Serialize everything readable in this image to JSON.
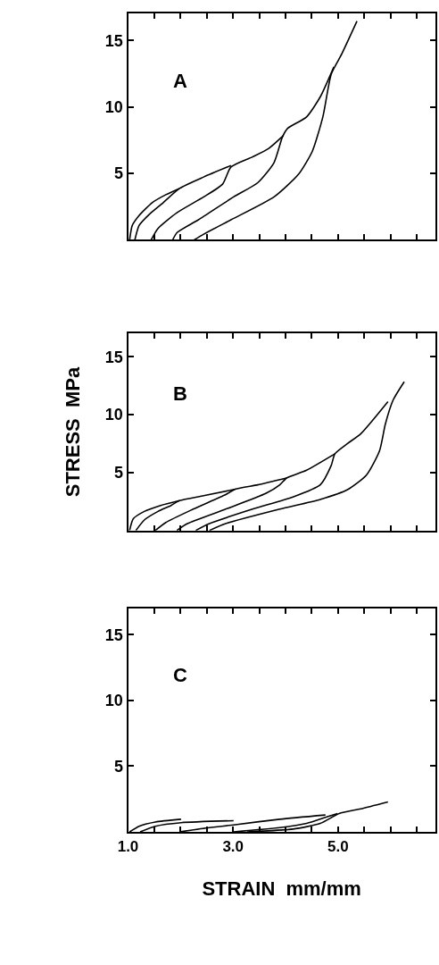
{
  "chart_data": [
    {
      "type": "line",
      "annotations": [
        "A"
      ],
      "xlim": [
        1.0,
        6.85
      ],
      "ylim": [
        0,
        17
      ],
      "tick_labels": "y",
      "marker": "none",
      "line_style": "solid",
      "xticks": [
        {
          "value": 1.0,
          "label": null
        },
        {
          "value": 1.5,
          "label": null
        },
        {
          "value": 2.0,
          "label": null
        },
        {
          "value": 2.5,
          "label": null
        },
        {
          "value": 3.0,
          "label": null
        },
        {
          "value": 3.5,
          "label": null
        },
        {
          "value": 4.0,
          "label": null
        },
        {
          "value": 4.5,
          "label": null
        },
        {
          "value": 5.0,
          "label": null
        },
        {
          "value": 5.5,
          "label": null
        },
        {
          "value": 6.0,
          "label": null
        },
        {
          "value": 6.5,
          "label": null
        }
      ],
      "yticks": [
        5,
        10,
        15
      ],
      "series": [
        {
          "color": "#000000",
          "x": [
            1.03,
            1.08,
            1.21,
            1.46,
            1.72,
            1.98
          ],
          "values": [
            0,
            1.08,
            1.83,
            2.8,
            3.4,
            3.87
          ]
        },
        {
          "color": "#000000",
          "x": [
            1.13,
            1.21,
            1.41,
            1.67,
            1.98,
            2.44,
            2.96
          ],
          "values": [
            0,
            1.08,
            1.94,
            2.8,
            3.87,
            4.73,
            5.59
          ]
        },
        {
          "color": "#000000",
          "x": [
            1.44,
            1.57,
            1.93,
            2.44,
            2.8,
            2.96,
            3.37,
            3.68,
            3.96
          ],
          "values": [
            0,
            0.86,
            2.04,
            3.23,
            4.19,
            5.48,
            6.24,
            6.88,
            7.85
          ]
        },
        {
          "color": "#000000",
          "x": [
            1.85,
            1.93,
            2.34,
            3.01,
            3.47,
            3.78,
            3.94,
            4.04,
            4.4,
            4.66,
            4.92
          ],
          "values": [
            0,
            0.54,
            1.51,
            3.23,
            4.3,
            5.81,
            7.74,
            8.39,
            9.25,
            10.75,
            13.01
          ]
        },
        {
          "color": "#000000",
          "x": [
            2.26,
            2.44,
            2.96,
            3.78,
            4.25,
            4.51,
            4.71,
            4.87,
            5.07,
            5.36
          ],
          "values": [
            0,
            0.43,
            1.51,
            3.23,
            4.95,
            6.67,
            9.25,
            12.47,
            13.98,
            16.45
          ]
        }
      ]
    },
    {
      "type": "line",
      "annotations": [
        "B"
      ],
      "ylabel": "STRESS  MPa",
      "xlim": [
        1.0,
        6.85
      ],
      "ylim": [
        0,
        17
      ],
      "tick_labels": "y",
      "marker": "none",
      "line_style": "solid",
      "xticks": [
        {
          "value": 1.0,
          "label": null
        },
        {
          "value": 1.5,
          "label": null
        },
        {
          "value": 2.0,
          "label": null
        },
        {
          "value": 2.5,
          "label": null
        },
        {
          "value": 3.0,
          "label": null
        },
        {
          "value": 3.5,
          "label": null
        },
        {
          "value": 4.0,
          "label": null
        },
        {
          "value": 4.5,
          "label": null
        },
        {
          "value": 5.0,
          "label": null
        },
        {
          "value": 5.5,
          "label": null
        },
        {
          "value": 6.0,
          "label": null
        },
        {
          "value": 6.5,
          "label": null
        }
      ],
      "yticks": [
        5,
        10,
        15
      ],
      "series": [
        {
          "color": "#000000",
          "x": [
            1.03,
            1.1,
            1.31,
            1.62,
            1.98
          ],
          "values": [
            0,
            1.01,
            1.64,
            2.16,
            2.58
          ]
        },
        {
          "color": "#000000",
          "x": [
            1.15,
            1.31,
            1.57,
            1.82,
            1.98,
            2.44,
            3.04
          ],
          "values": [
            0,
            0.9,
            1.64,
            2.16,
            2.58,
            3.0,
            3.56
          ]
        },
        {
          "color": "#000000",
          "x": [
            1.52,
            1.72,
            2.24,
            2.86,
            3.04,
            3.47,
            4.02
          ],
          "values": [
            0,
            0.69,
            1.84,
            3.1,
            3.56,
            3.94,
            4.53
          ]
        },
        {
          "color": "#000000",
          "x": [
            1.93,
            2.13,
            2.86,
            3.63,
            3.89,
            4.02,
            4.4,
            4.94
          ],
          "values": [
            0,
            0.59,
            1.84,
            3.21,
            3.94,
            4.53,
            5.2,
            6.62
          ]
        },
        {
          "color": "#000000",
          "x": [
            2.29,
            2.55,
            3.37,
            4.14,
            4.66,
            4.87,
            4.94,
            5.18,
            5.43,
            5.95
          ],
          "values": [
            0,
            0.59,
            1.84,
            2.89,
            3.94,
            5.62,
            6.62,
            7.51,
            8.34,
            11.13
          ]
        },
        {
          "color": "#000000",
          "x": [
            2.55,
            2.86,
            3.89,
            4.66,
            5.18,
            5.54,
            5.79,
            5.9,
            6.05,
            6.26
          ],
          "values": [
            0,
            0.59,
            1.84,
            2.68,
            3.52,
            4.78,
            6.88,
            9.18,
            11.28,
            12.85
          ]
        }
      ]
    },
    {
      "type": "line",
      "annotations": [
        "C"
      ],
      "xlabel": "STRAIN  mm/mm",
      "xlim": [
        1.0,
        6.85
      ],
      "ylim": [
        0,
        17
      ],
      "marker": "none",
      "line_style": "solid",
      "xticks": [
        {
          "value": 1.0,
          "label": "1.0"
        },
        {
          "value": 1.5,
          "label": null
        },
        {
          "value": 2.0,
          "label": null
        },
        {
          "value": 2.5,
          "label": null
        },
        {
          "value": 3.0,
          "label": "3.0"
        },
        {
          "value": 3.5,
          "label": null
        },
        {
          "value": 4.0,
          "label": null
        },
        {
          "value": 4.5,
          "label": null
        },
        {
          "value": 5.0,
          "label": "5.0"
        },
        {
          "value": 5.5,
          "label": null
        },
        {
          "value": 6.0,
          "label": null
        },
        {
          "value": 6.5,
          "label": null
        }
      ],
      "yticks": [
        5,
        10,
        15
      ],
      "series": [
        {
          "color": "#000000",
          "x": [
            1.03,
            1.21,
            1.52,
            2.01
          ],
          "values": [
            0,
            0.43,
            0.75,
            0.96
          ]
        },
        {
          "color": "#000000",
          "x": [
            1.23,
            1.52,
            2.01,
            3.01
          ],
          "values": [
            0,
            0.43,
            0.7,
            0.85
          ]
        },
        {
          "color": "#000000",
          "x": [
            1.98,
            2.55,
            3.01,
            3.89,
            4.76
          ],
          "values": [
            0,
            0.32,
            0.53,
            0.96,
            1.28
          ]
        },
        {
          "color": "#000000",
          "x": [
            3.01,
            3.89,
            4.4,
            4.81,
            4.99
          ],
          "values": [
            0,
            0.32,
            0.64,
            1.17,
            1.39
          ]
        },
        {
          "color": "#000000",
          "x": [
            3.27,
            4.14,
            4.66,
            5.02,
            5.43,
            5.95
          ],
          "values": [
            0,
            0.21,
            0.64,
            1.39,
            1.75,
            2.28
          ]
        }
      ]
    }
  ]
}
